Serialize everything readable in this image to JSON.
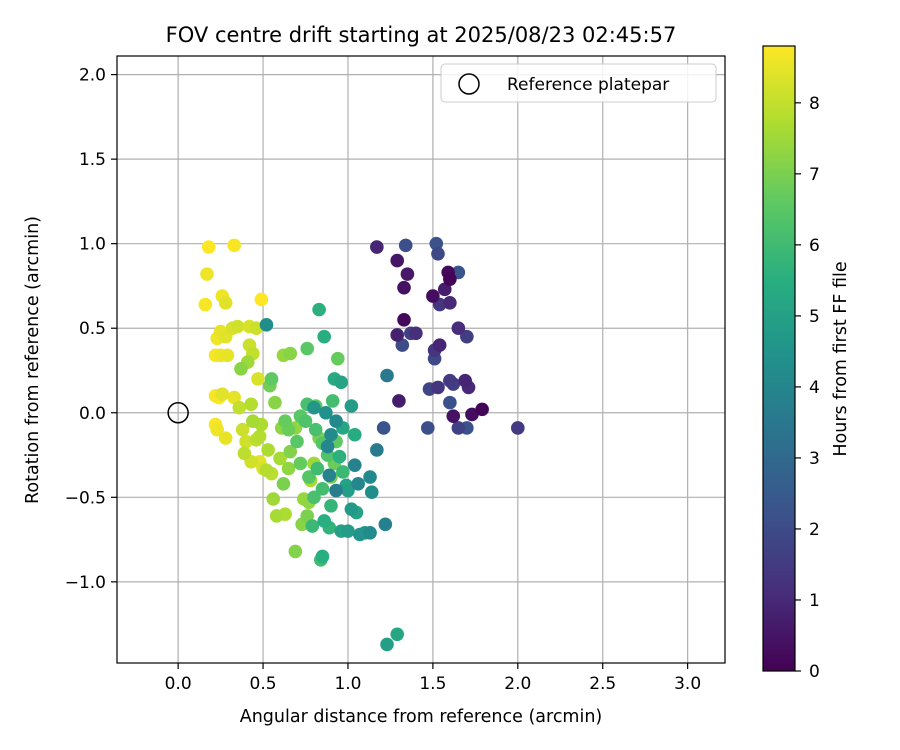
{
  "chart_data": {
    "type": "scatter",
    "title": "FOV centre drift starting at 2025/08/23 02:45:57",
    "xlabel": "Angular distance from reference (arcmin)",
    "ylabel": "Rotation from reference (arcmin)",
    "xlim": [
      -0.36,
      3.22
    ],
    "ylim": [
      -1.48,
      2.11
    ],
    "xticks": [
      0.0,
      0.5,
      1.0,
      1.5,
      2.0,
      2.5,
      3.0
    ],
    "xtick_labels": [
      "0.0",
      "0.5",
      "1.0",
      "1.5",
      "2.0",
      "2.5",
      "3.0"
    ],
    "yticks": [
      -1.0,
      -0.5,
      0.0,
      0.5,
      1.0,
      1.5,
      2.0
    ],
    "ytick_labels": [
      "−1.0",
      "−0.5",
      "0.0",
      "0.5",
      "1.0",
      "1.5",
      "2.0"
    ],
    "grid": true,
    "legend": {
      "placement": "top-right",
      "label": "Reference platepar"
    },
    "reference_point": {
      "x": 0.0,
      "y": 0.0
    },
    "colorbar": {
      "label": "Hours from first FF file",
      "min": 0,
      "max": 8.8,
      "ticks": [
        0,
        1,
        2,
        3,
        4,
        5,
        6,
        7,
        8
      ],
      "tick_labels": [
        "0",
        "1",
        "2",
        "3",
        "4",
        "5",
        "6",
        "7",
        "8"
      ],
      "colormap": "viridis"
    },
    "points": [
      {
        "x": 1.17,
        "y": 0.98,
        "h": 0.9
      },
      {
        "x": 1.29,
        "y": 0.9,
        "h": 0.5
      },
      {
        "x": 1.34,
        "y": 0.99,
        "h": 2.1
      },
      {
        "x": 1.52,
        "y": 1.0,
        "h": 2.2
      },
      {
        "x": 1.53,
        "y": 0.94,
        "h": 1.9
      },
      {
        "x": 1.59,
        "y": 0.83,
        "h": 0.2
      },
      {
        "x": 1.6,
        "y": 0.79,
        "h": 0.1
      },
      {
        "x": 1.65,
        "y": 0.83,
        "h": 2.3
      },
      {
        "x": 1.35,
        "y": 0.82,
        "h": 0.6
      },
      {
        "x": 1.33,
        "y": 0.74,
        "h": 0.4
      },
      {
        "x": 1.5,
        "y": 0.69,
        "h": 0.3
      },
      {
        "x": 1.54,
        "y": 0.64,
        "h": 1.4
      },
      {
        "x": 1.6,
        "y": 0.65,
        "h": 1.0
      },
      {
        "x": 1.57,
        "y": 0.73,
        "h": 0.7
      },
      {
        "x": 1.33,
        "y": 0.55,
        "h": 0.2
      },
      {
        "x": 1.29,
        "y": 0.46,
        "h": 0.8
      },
      {
        "x": 1.37,
        "y": 0.47,
        "h": 1.7
      },
      {
        "x": 1.4,
        "y": 0.47,
        "h": 1.2
      },
      {
        "x": 1.32,
        "y": 0.4,
        "h": 2.0
      },
      {
        "x": 1.51,
        "y": 0.37,
        "h": 1.3
      },
      {
        "x": 1.54,
        "y": 0.4,
        "h": 0.9
      },
      {
        "x": 1.51,
        "y": 0.32,
        "h": 1.9
      },
      {
        "x": 1.65,
        "y": 0.5,
        "h": 1.1
      },
      {
        "x": 1.7,
        "y": 0.45,
        "h": 1.6
      },
      {
        "x": 1.48,
        "y": 0.14,
        "h": 1.8
      },
      {
        "x": 1.53,
        "y": 0.15,
        "h": 1.3
      },
      {
        "x": 1.6,
        "y": 0.19,
        "h": 1.5
      },
      {
        "x": 1.62,
        "y": 0.17,
        "h": 1.6
      },
      {
        "x": 1.69,
        "y": 0.19,
        "h": 0.9
      },
      {
        "x": 1.71,
        "y": 0.15,
        "h": 1.0
      },
      {
        "x": 1.6,
        "y": 0.06,
        "h": 2.2
      },
      {
        "x": 1.73,
        "y": -0.01,
        "h": 0.3
      },
      {
        "x": 1.79,
        "y": 0.02,
        "h": 0.1
      },
      {
        "x": 1.62,
        "y": -0.02,
        "h": 0.4
      },
      {
        "x": 1.3,
        "y": 0.07,
        "h": 0.7
      },
      {
        "x": 1.21,
        "y": -0.09,
        "h": 2.3
      },
      {
        "x": 1.47,
        "y": -0.09,
        "h": 2.1
      },
      {
        "x": 1.65,
        "y": -0.09,
        "h": 1.7
      },
      {
        "x": 1.7,
        "y": -0.09,
        "h": 2.2
      },
      {
        "x": 2.0,
        "y": -0.09,
        "h": 1.5
      },
      {
        "x": 1.23,
        "y": 0.22,
        "h": 3.5
      },
      {
        "x": 1.17,
        "y": -0.22,
        "h": 3.6
      },
      {
        "x": 1.22,
        "y": -0.66,
        "h": 3.8
      },
      {
        "x": 1.06,
        "y": -0.42,
        "h": 4.0
      },
      {
        "x": 1.04,
        "y": -0.31,
        "h": 3.9
      },
      {
        "x": 1.13,
        "y": -0.38,
        "h": 4.1
      },
      {
        "x": 1.14,
        "y": -0.47,
        "h": 4.3
      },
      {
        "x": 1.13,
        "y": -0.71,
        "h": 4.2
      },
      {
        "x": 1.07,
        "y": -0.72,
        "h": 4.5
      },
      {
        "x": 1.02,
        "y": -0.57,
        "h": 4.7
      },
      {
        "x": 0.93,
        "y": -0.46,
        "h": 3.7
      },
      {
        "x": 0.89,
        "y": -0.37,
        "h": 3.9
      },
      {
        "x": 0.88,
        "y": -0.2,
        "h": 4.0
      },
      {
        "x": 0.9,
        "y": -0.13,
        "h": 4.2
      },
      {
        "x": 0.93,
        "y": -0.05,
        "h": 4.1
      },
      {
        "x": 0.87,
        "y": 0.0,
        "h": 4.4
      },
      {
        "x": 0.8,
        "y": 0.03,
        "h": 4.6
      },
      {
        "x": 0.52,
        "y": 0.52,
        "h": 4.3
      },
      {
        "x": 1.23,
        "y": -1.37,
        "h": 4.9
      },
      {
        "x": 1.29,
        "y": -1.31,
        "h": 5.2
      },
      {
        "x": 0.83,
        "y": 0.61,
        "h": 5.6
      },
      {
        "x": 0.86,
        "y": 0.45,
        "h": 5.5
      },
      {
        "x": 0.92,
        "y": 0.2,
        "h": 5.3
      },
      {
        "x": 0.96,
        "y": 0.18,
        "h": 5.1
      },
      {
        "x": 1.02,
        "y": 0.04,
        "h": 4.8
      },
      {
        "x": 1.04,
        "y": -0.13,
        "h": 5.4
      },
      {
        "x": 0.97,
        "y": -0.09,
        "h": 5.2
      },
      {
        "x": 0.95,
        "y": -0.26,
        "h": 5.6
      },
      {
        "x": 0.97,
        "y": -0.35,
        "h": 5.9
      },
      {
        "x": 0.99,
        "y": -0.43,
        "h": 5.0
      },
      {
        "x": 1.0,
        "y": -0.46,
        "h": 4.9
      },
      {
        "x": 1.05,
        "y": -0.59,
        "h": 5.1
      },
      {
        "x": 0.96,
        "y": -0.7,
        "h": 5.0
      },
      {
        "x": 1.0,
        "y": -0.7,
        "h": 4.8
      },
      {
        "x": 1.1,
        "y": -0.71,
        "h": 4.6
      },
      {
        "x": 0.9,
        "y": -0.55,
        "h": 5.8
      },
      {
        "x": 0.86,
        "y": -0.64,
        "h": 5.5
      },
      {
        "x": 0.89,
        "y": -0.68,
        "h": 5.7
      },
      {
        "x": 0.79,
        "y": -0.67,
        "h": 5.9
      },
      {
        "x": 0.85,
        "y": -0.85,
        "h": 5.5
      },
      {
        "x": 0.84,
        "y": -0.87,
        "h": 6.0
      },
      {
        "x": 0.8,
        "y": -0.5,
        "h": 6.2
      },
      {
        "x": 0.85,
        "y": -0.45,
        "h": 6.1
      },
      {
        "x": 0.82,
        "y": -0.33,
        "h": 6.0
      },
      {
        "x": 0.88,
        "y": -0.25,
        "h": 6.3
      },
      {
        "x": 0.85,
        "y": -0.18,
        "h": 6.4
      },
      {
        "x": 0.81,
        "y": -0.1,
        "h": 6.2
      },
      {
        "x": 0.75,
        "y": -0.05,
        "h": 6.3
      },
      {
        "x": 0.72,
        "y": -0.02,
        "h": 6.5
      },
      {
        "x": 0.76,
        "y": 0.05,
        "h": 6.2
      },
      {
        "x": 0.81,
        "y": 0.04,
        "h": 6.6
      },
      {
        "x": 0.91,
        "y": 0.07,
        "h": 6.1
      },
      {
        "x": 0.93,
        "y": -0.17,
        "h": 6.6
      },
      {
        "x": 0.92,
        "y": -0.3,
        "h": 6.8
      },
      {
        "x": 0.9,
        "y": -0.38,
        "h": 6.9
      },
      {
        "x": 0.77,
        "y": -0.38,
        "h": 6.4
      },
      {
        "x": 0.72,
        "y": -0.3,
        "h": 6.7
      },
      {
        "x": 0.7,
        "y": -0.17,
        "h": 6.5
      },
      {
        "x": 0.63,
        "y": -0.05,
        "h": 6.7
      },
      {
        "x": 0.65,
        "y": -0.1,
        "h": 6.8
      },
      {
        "x": 0.76,
        "y": 0.38,
        "h": 6.5
      },
      {
        "x": 0.55,
        "y": 0.2,
        "h": 6.6
      },
      {
        "x": 0.94,
        "y": 0.32,
        "h": 6.7
      },
      {
        "x": 0.54,
        "y": 0.16,
        "h": 6.9
      },
      {
        "x": 0.57,
        "y": 0.06,
        "h": 7.2
      },
      {
        "x": 0.62,
        "y": 0.34,
        "h": 7.4
      },
      {
        "x": 0.66,
        "y": 0.35,
        "h": 7.2
      },
      {
        "x": 0.61,
        "y": -0.09,
        "h": 7.3
      },
      {
        "x": 0.66,
        "y": -0.23,
        "h": 7.1
      },
      {
        "x": 0.6,
        "y": -0.27,
        "h": 7.6
      },
      {
        "x": 0.65,
        "y": -0.33,
        "h": 7.3
      },
      {
        "x": 0.62,
        "y": -0.42,
        "h": 7.0
      },
      {
        "x": 0.56,
        "y": -0.51,
        "h": 7.5
      },
      {
        "x": 0.58,
        "y": -0.61,
        "h": 7.6
      },
      {
        "x": 0.63,
        "y": -0.6,
        "h": 7.7
      },
      {
        "x": 0.69,
        "y": -0.82,
        "h": 7.1
      },
      {
        "x": 0.73,
        "y": -0.66,
        "h": 7.2
      },
      {
        "x": 0.76,
        "y": -0.61,
        "h": 7.0
      },
      {
        "x": 0.74,
        "y": -0.51,
        "h": 7.4
      },
      {
        "x": 0.77,
        "y": -0.53,
        "h": 7.3
      },
      {
        "x": 0.78,
        "y": -0.4,
        "h": 7.6
      },
      {
        "x": 0.8,
        "y": -0.3,
        "h": 7.5
      },
      {
        "x": 0.83,
        "y": -0.15,
        "h": 7.0
      },
      {
        "x": 0.69,
        "y": -0.09,
        "h": 7.3
      },
      {
        "x": 0.53,
        "y": -0.22,
        "h": 7.7
      },
      {
        "x": 0.52,
        "y": -0.34,
        "h": 7.8
      },
      {
        "x": 0.55,
        "y": -0.36,
        "h": 7.9
      },
      {
        "x": 0.48,
        "y": -0.14,
        "h": 7.8
      },
      {
        "x": 0.46,
        "y": -0.16,
        "h": 7.9
      },
      {
        "x": 0.49,
        "y": -0.07,
        "h": 7.7
      },
      {
        "x": 0.44,
        "y": -0.05,
        "h": 7.6
      },
      {
        "x": 0.43,
        "y": 0.05,
        "h": 7.8
      },
      {
        "x": 0.37,
        "y": 0.26,
        "h": 7.2
      },
      {
        "x": 0.41,
        "y": 0.3,
        "h": 7.5
      },
      {
        "x": 0.44,
        "y": 0.35,
        "h": 8.0
      },
      {
        "x": 0.47,
        "y": 0.2,
        "h": 8.3
      },
      {
        "x": 0.42,
        "y": 0.4,
        "h": 8.1
      },
      {
        "x": 0.36,
        "y": 0.03,
        "h": 8.0
      },
      {
        "x": 0.38,
        "y": -0.1,
        "h": 8.1
      },
      {
        "x": 0.4,
        "y": -0.17,
        "h": 8.2
      },
      {
        "x": 0.39,
        "y": -0.24,
        "h": 7.9
      },
      {
        "x": 0.43,
        "y": -0.29,
        "h": 8.2
      },
      {
        "x": 0.48,
        "y": -0.29,
        "h": 8.4
      },
      {
        "x": 0.5,
        "y": -0.33,
        "h": 8.3
      },
      {
        "x": 0.28,
        "y": -0.15,
        "h": 8.5
      },
      {
        "x": 0.22,
        "y": -0.07,
        "h": 8.7
      },
      {
        "x": 0.23,
        "y": -0.1,
        "h": 8.6
      },
      {
        "x": 0.33,
        "y": 0.09,
        "h": 8.5
      },
      {
        "x": 0.26,
        "y": 0.11,
        "h": 8.4
      },
      {
        "x": 0.22,
        "y": 0.1,
        "h": 8.7
      },
      {
        "x": 0.24,
        "y": 0.09,
        "h": 8.8
      },
      {
        "x": 0.25,
        "y": 0.34,
        "h": 8.6
      },
      {
        "x": 0.22,
        "y": 0.34,
        "h": 8.7
      },
      {
        "x": 0.29,
        "y": 0.34,
        "h": 8.5
      },
      {
        "x": 0.23,
        "y": 0.44,
        "h": 8.6
      },
      {
        "x": 0.28,
        "y": 0.45,
        "h": 8.4
      },
      {
        "x": 0.25,
        "y": 0.48,
        "h": 8.5
      },
      {
        "x": 0.32,
        "y": 0.5,
        "h": 8.3
      },
      {
        "x": 0.35,
        "y": 0.51,
        "h": 8.2
      },
      {
        "x": 0.42,
        "y": 0.51,
        "h": 8.3
      },
      {
        "x": 0.46,
        "y": 0.5,
        "h": 8.1
      },
      {
        "x": 0.16,
        "y": 0.64,
        "h": 8.7
      },
      {
        "x": 0.26,
        "y": 0.69,
        "h": 8.6
      },
      {
        "x": 0.28,
        "y": 0.65,
        "h": 8.4
      },
      {
        "x": 0.49,
        "y": 0.67,
        "h": 8.8
      },
      {
        "x": 0.17,
        "y": 0.82,
        "h": 8.6
      },
      {
        "x": 0.18,
        "y": 0.98,
        "h": 8.8
      },
      {
        "x": 0.33,
        "y": 0.99,
        "h": 8.7
      }
    ]
  }
}
